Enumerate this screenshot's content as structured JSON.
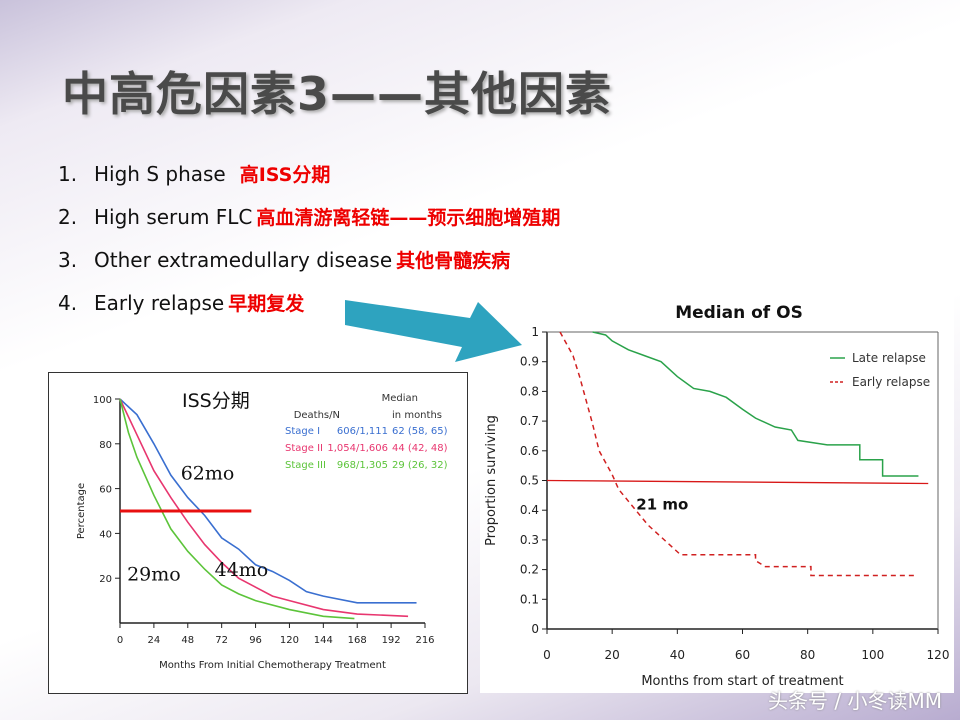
{
  "title": "中高危因素3——其他因素",
  "items": [
    {
      "num": "1.",
      "text": "High S phase",
      "cn": "高ISS分期"
    },
    {
      "num": "2.",
      "text": "High serum FLC",
      "cn": "高血清游离轻链——预示细胞增殖期"
    },
    {
      "num": "3.",
      "text": "Other extramedullary disease",
      "cn": "其他骨髓疾病"
    },
    {
      "num": "4.",
      "text": "Early relapse",
      "cn": "早期复发"
    }
  ],
  "arrow_color": "#2ea3bf",
  "watermark": "头条号 / 小冬读MM",
  "chart_data": [
    {
      "type": "line",
      "title": "ISS分期",
      "xlabel": "Months From Initial Chemotherapy Treatment",
      "ylabel": "Percentage",
      "xlim": [
        0,
        216
      ],
      "ylim": [
        0,
        100
      ],
      "xticks": [
        0,
        24,
        48,
        72,
        96,
        120,
        144,
        168,
        192,
        216
      ],
      "yticks": [
        20,
        40,
        60,
        80,
        100
      ],
      "legend_header": {
        "deaths": "Deaths/N",
        "median": "Median",
        "median2": "in months"
      },
      "series": [
        {
          "name": "Stage I",
          "deaths": "606/1,111",
          "median": "62 (58, 65)",
          "color": "#3a6fd0",
          "points": [
            [
              0,
              100
            ],
            [
              12,
              93
            ],
            [
              24,
              80
            ],
            [
              36,
              66
            ],
            [
              48,
              56
            ],
            [
              60,
              48
            ],
            [
              72,
              38
            ],
            [
              84,
              33
            ],
            [
              96,
              26
            ],
            [
              108,
              23
            ],
            [
              120,
              19
            ],
            [
              132,
              14
            ],
            [
              144,
              12
            ],
            [
              168,
              9
            ],
            [
              210,
              9
            ]
          ]
        },
        {
          "name": "Stage II",
          "deaths": "1,054/1,606",
          "median": "44 (42, 48)",
          "color": "#e8366f",
          "points": [
            [
              0,
              100
            ],
            [
              12,
              84
            ],
            [
              24,
              68
            ],
            [
              36,
              56
            ],
            [
              48,
              45
            ],
            [
              60,
              35
            ],
            [
              72,
              27
            ],
            [
              84,
              20
            ],
            [
              96,
              16
            ],
            [
              108,
              12
            ],
            [
              120,
              10
            ],
            [
              144,
              6
            ],
            [
              168,
              4
            ],
            [
              204,
              3
            ]
          ]
        },
        {
          "name": "Stage III",
          "deaths": "968/1,305",
          "median": "29 (26, 32)",
          "color": "#5cc43a",
          "points": [
            [
              0,
              100
            ],
            [
              6,
              85
            ],
            [
              12,
              74
            ],
            [
              24,
              57
            ],
            [
              36,
              42
            ],
            [
              48,
              32
            ],
            [
              60,
              24
            ],
            [
              72,
              17
            ],
            [
              84,
              13
            ],
            [
              96,
              10
            ],
            [
              120,
              6
            ],
            [
              144,
              3
            ],
            [
              166,
              2
            ]
          ]
        }
      ],
      "median_line": {
        "y": 50,
        "x": [
          0,
          93
        ],
        "color": "#e81010"
      },
      "annotations": [
        {
          "text": "62mo",
          "x": 62,
          "y": 64
        },
        {
          "text": "44mo",
          "x": 86,
          "y": 21
        },
        {
          "text": "29mo",
          "x": 24,
          "y": 19
        }
      ]
    },
    {
      "type": "line",
      "title": "Median of OS",
      "xlabel": "Months from start of treatment",
      "ylabel": "Proportion surviving",
      "xlim": [
        0,
        120
      ],
      "ylim": [
        0,
        1
      ],
      "xticks": [
        0,
        20,
        40,
        60,
        80,
        100,
        120
      ],
      "yticks": [
        0,
        0.1,
        0.2,
        0.3,
        0.4,
        0.5,
        0.6,
        0.7,
        0.8,
        0.9,
        1
      ],
      "legend_position": "top-right",
      "series": [
        {
          "name": "Late relapse",
          "color": "#2aa24a",
          "dash": false,
          "points": [
            [
              14,
              1
            ],
            [
              18,
              0.99
            ],
            [
              20,
              0.97
            ],
            [
              25,
              0.94
            ],
            [
              30,
              0.92
            ],
            [
              35,
              0.9
            ],
            [
              40,
              0.85
            ],
            [
              45,
              0.81
            ],
            [
              50,
              0.8
            ],
            [
              55,
              0.78
            ],
            [
              60,
              0.74
            ],
            [
              64,
              0.71
            ],
            [
              70,
              0.68
            ],
            [
              75,
              0.67
            ],
            [
              77,
              0.635
            ],
            [
              86,
              0.62
            ],
            [
              96,
              0.62
            ],
            [
              96,
              0.57
            ],
            [
              103,
              0.57
            ],
            [
              103,
              0.515
            ],
            [
              114,
              0.515
            ]
          ]
        },
        {
          "name": "Early relapse",
          "color": "#d02020",
          "dash": true,
          "points": [
            [
              4,
              1
            ],
            [
              8,
              0.92
            ],
            [
              10,
              0.85
            ],
            [
              12,
              0.77
            ],
            [
              14,
              0.69
            ],
            [
              16,
              0.6
            ],
            [
              20,
              0.52
            ],
            [
              22,
              0.47
            ],
            [
              25,
              0.43
            ],
            [
              28,
              0.39
            ],
            [
              31,
              0.35
            ],
            [
              35,
              0.31
            ],
            [
              38,
              0.28
            ],
            [
              41,
              0.25
            ],
            [
              64,
              0.25
            ],
            [
              64,
              0.23
            ],
            [
              67,
              0.21
            ],
            [
              81,
              0.21
            ],
            [
              81,
              0.18
            ],
            [
              113,
              0.18
            ]
          ]
        }
      ],
      "median_line": {
        "y": [
          0.5,
          0.49
        ],
        "x": [
          0,
          117
        ],
        "color": "#d81818"
      },
      "annotations": [
        {
          "text": "21 mo",
          "x": 32,
          "y": 0.42
        }
      ]
    }
  ]
}
